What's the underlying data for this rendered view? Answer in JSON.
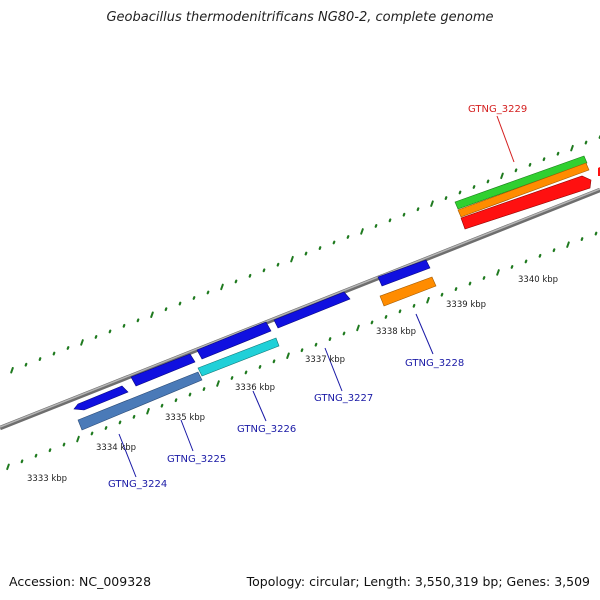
{
  "title": "Geobacillus thermodenitrificans NG80-2, complete genome",
  "footer": {
    "accession": "Accession: NC_009328",
    "summary": "Topology: circular; Length: 3,550,319 bp; Genes: 3,509"
  },
  "colors": {
    "backbone": "#8a8a8a",
    "tick": "#1f7a1f",
    "label_blue": "#1a1aa6",
    "label_red": "#d42020",
    "blue": "#1010e0",
    "steel": "#4a7ab8",
    "cyan": "#20d0d8",
    "orange": "#ff8c00",
    "green": "#30d030",
    "red": "#ff1010"
  },
  "kbp_labels": [
    "3333 kbp",
    "3334 kbp",
    "3335 kbp",
    "3336 kbp",
    "3337 kbp",
    "3338 kbp",
    "3339 kbp",
    "3340 kbp"
  ],
  "genes": [
    {
      "id": "GTNG_3224",
      "strand": "forward"
    },
    {
      "id": "GTNG_3225",
      "strand": "reverse"
    },
    {
      "id": "GTNG_3226",
      "strand": "reverse"
    },
    {
      "id": "GTNG_3227",
      "strand": "forward"
    },
    {
      "id": "GTNG_3228",
      "strand": "reverse"
    },
    {
      "id": "GTNG_3229",
      "strand": "forward"
    }
  ]
}
